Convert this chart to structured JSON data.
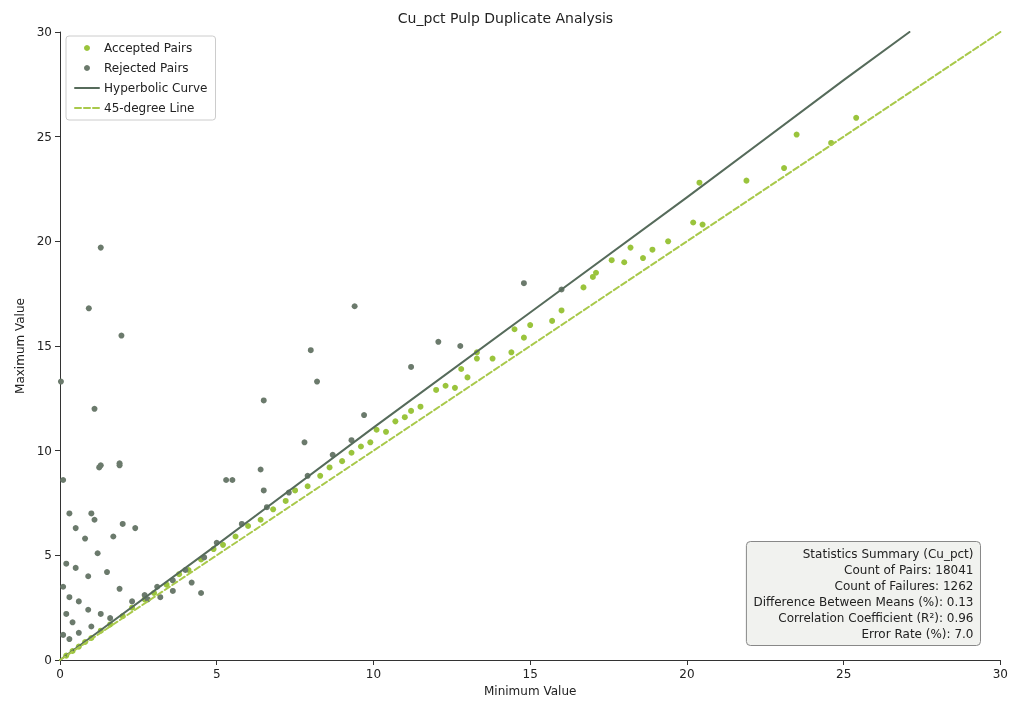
{
  "chart_data": {
    "type": "scatter",
    "title": "Cu_pct Pulp Duplicate Analysis",
    "xlabel": "Minimum Value",
    "ylabel": "Maximum Value",
    "xlim": [
      0,
      30
    ],
    "ylim": [
      0,
      30
    ],
    "xticks": [
      0,
      5,
      10,
      15,
      20,
      25,
      30
    ],
    "yticks": [
      0,
      5,
      10,
      15,
      20,
      25,
      30
    ],
    "grid": false,
    "legend": "top left",
    "series": [
      {
        "name": "Accepted Pairs",
        "marker": "circle",
        "color": "#9ac43c",
        "x": [
          0.2,
          0.4,
          0.6,
          0.8,
          1.0,
          1.3,
          1.6,
          2.0,
          2.3,
          2.7,
          3.0,
          3.4,
          3.8,
          4.1,
          4.5,
          4.9,
          5.2,
          5.6,
          6.0,
          6.4,
          6.8,
          7.2,
          7.5,
          7.9,
          8.3,
          8.6,
          9.0,
          9.3,
          9.6,
          9.9,
          10.1,
          10.4,
          10.7,
          11.0,
          11.2,
          11.5,
          12.0,
          12.3,
          12.6,
          12.8,
          13.0,
          13.3,
          13.3,
          13.8,
          14.4,
          14.5,
          14.8,
          15.0,
          15.7,
          16.0,
          16.7,
          17.0,
          17.1,
          17.6,
          18.0,
          18.2,
          18.6,
          18.9,
          19.4,
          20.2,
          20.4,
          20.5,
          21.9,
          23.1,
          23.5,
          24.6,
          25.4
        ],
        "values": [
          0.21,
          0.43,
          0.64,
          0.86,
          1.05,
          1.4,
          1.7,
          2.1,
          2.5,
          2.9,
          3.2,
          3.6,
          4.1,
          4.3,
          4.8,
          5.3,
          5.5,
          5.9,
          6.4,
          6.7,
          7.2,
          7.6,
          8.1,
          8.3,
          8.8,
          9.2,
          9.5,
          9.9,
          10.2,
          10.4,
          11.0,
          10.9,
          11.4,
          11.6,
          11.9,
          12.1,
          12.9,
          13.1,
          13.0,
          13.9,
          13.5,
          14.7,
          14.4,
          14.4,
          14.7,
          15.8,
          15.4,
          16.0,
          16.2,
          16.7,
          17.8,
          18.3,
          18.5,
          19.1,
          19.0,
          19.7,
          19.2,
          19.6,
          20.0,
          20.9,
          22.8,
          20.8,
          22.9,
          23.5,
          25.1,
          24.7,
          25.9
        ]
      },
      {
        "name": "Rejected Pairs",
        "marker": "circle",
        "color": "#6b7a6c",
        "x": [
          1.3,
          0.92,
          1.96,
          1.1,
          1.3,
          1.25,
          1.9,
          1.9,
          0.03,
          0.1,
          9.4,
          8.0,
          8.2,
          6.5,
          12.07,
          12.77,
          11.2,
          14.8,
          16.0,
          9.7,
          7.8,
          6.4,
          5.3,
          5.5,
          6.5,
          0.3,
          0.5,
          0.8,
          1.0,
          1.1,
          1.2,
          1.7,
          2.0,
          2.4,
          0.2,
          0.5,
          0.9,
          1.5,
          1.9,
          2.7,
          3.2,
          3.6,
          4.2,
          4.5,
          0.1,
          0.3,
          0.6,
          0.9,
          1.3,
          1.6,
          0.2,
          0.4,
          0.1,
          0.3,
          0.6,
          1.0,
          2.3,
          2.8,
          3.1,
          3.6,
          4.0,
          4.6,
          5.0,
          5.8,
          6.6,
          7.3,
          7.9,
          8.7,
          9.3
        ],
        "values": [
          19.7,
          16.8,
          15.5,
          12.0,
          9.3,
          9.2,
          9.4,
          9.3,
          13.3,
          8.6,
          16.9,
          14.8,
          13.3,
          12.4,
          15.2,
          15.0,
          14.0,
          18.0,
          17.7,
          11.7,
          10.4,
          9.1,
          8.6,
          8.6,
          8.1,
          7.0,
          6.3,
          5.8,
          7.0,
          6.7,
          5.1,
          5.9,
          6.5,
          6.3,
          4.6,
          4.4,
          4.0,
          4.2,
          3.4,
          3.1,
          3.0,
          3.3,
          3.7,
          3.2,
          3.5,
          3.0,
          2.8,
          2.4,
          2.2,
          2.0,
          2.2,
          1.8,
          1.2,
          1.0,
          1.3,
          1.6,
          2.8,
          2.9,
          3.5,
          3.8,
          4.3,
          4.9,
          5.6,
          6.5,
          7.3,
          8.0,
          8.8,
          9.8,
          10.5
        ]
      },
      {
        "name": "Hyperbolic Curve",
        "type": "line",
        "marker": "none",
        "line_style": "solid",
        "color": "#566b5b",
        "x": [
          0,
          5,
          10,
          15,
          20,
          25,
          27.1
        ],
        "values": [
          0,
          5.5,
          11.1,
          16.6,
          22.1,
          27.7,
          30
        ]
      },
      {
        "name": "45-degree Line",
        "type": "line",
        "marker": "none",
        "line_style": "dashed",
        "color": "#a9c94b",
        "x": [
          0,
          30
        ],
        "values": [
          0,
          30
        ]
      }
    ],
    "annotations": [
      "Statistics Summary (Cu_pct)",
      "Count of Pairs: 18041",
      "Count of Failures: 1262",
      "Difference Between Means (%): 0.13",
      "Correlation Coefficient (R²): 0.96",
      "Error Rate (%): 7.0"
    ]
  }
}
